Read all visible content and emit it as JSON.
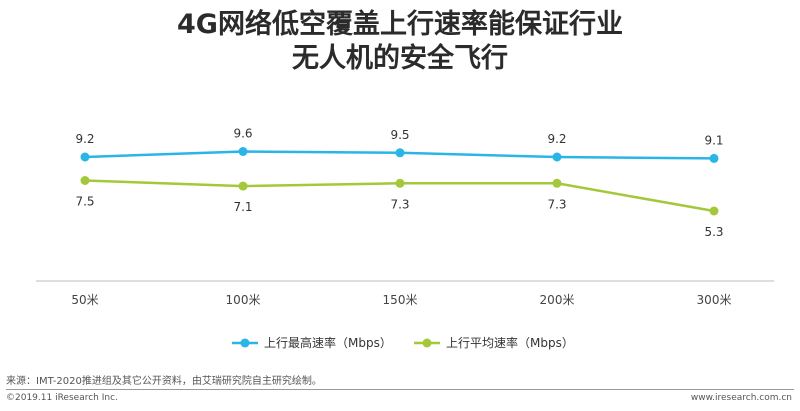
{
  "title_lines": [
    "4G网络低空覆盖上行速率能保证行业",
    "无人机的安全飞行"
  ],
  "chart_data": {
    "type": "line",
    "title": "4G网络低空覆盖上行速率能保证行业无人机的安全飞行",
    "categories": [
      "50米",
      "100米",
      "150米",
      "200米",
      "300米"
    ],
    "series": [
      {
        "name": "上行最高速率（Mbps）",
        "values": [
          9.2,
          9.6,
          9.5,
          9.2,
          9.1
        ],
        "color": "#29b6e6"
      },
      {
        "name": "上行平均速率（Mbps）",
        "values": [
          7.5,
          7.1,
          7.3,
          7.3,
          5.3
        ],
        "color": "#a3c83a"
      }
    ],
    "ylim": [
      0,
      11
    ],
    "grid": false,
    "legend_position": "bottom"
  },
  "source_text": "来源：IMT-2020推进组及其它公开资料，由艾瑞研究院自主研究绘制。",
  "copyright_text": "©2019.11 iResearch Inc.",
  "website_text": "www.iresearch.com.cn"
}
